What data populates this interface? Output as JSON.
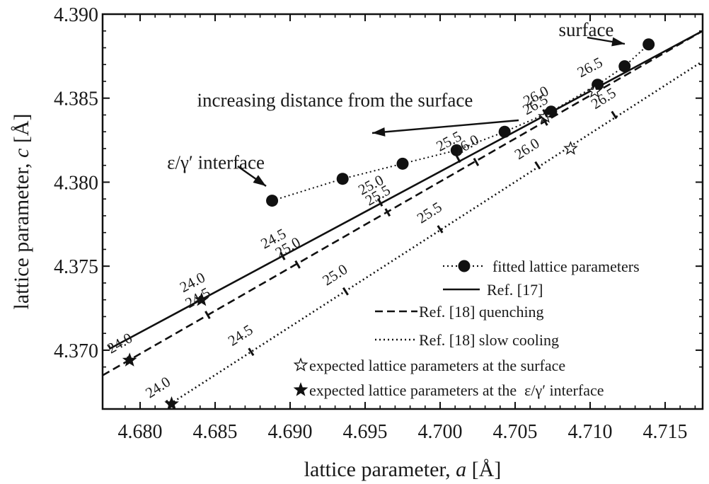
{
  "chart_data": {
    "type": "line",
    "xlabel": {
      "prefix": "lattice parameter, ",
      "symbol": "a",
      "unit": " [Å]"
    },
    "ylabel": {
      "prefix": "lattice parameter, ",
      "symbol": "c",
      "unit": " [Å]"
    },
    "xlim": [
      4.6775,
      4.7175
    ],
    "ylim": [
      4.3665,
      4.39
    ],
    "x_ticks": [
      "4.680",
      "4.685",
      "4.690",
      "4.695",
      "4.700",
      "4.705",
      "4.710",
      "4.715"
    ],
    "x_tick_values": [
      4.68,
      4.685,
      4.69,
      4.695,
      4.7,
      4.705,
      4.71,
      4.715
    ],
    "y_ticks": [
      "4.370",
      "4.375",
      "4.380",
      "4.385",
      "4.390"
    ],
    "y_tick_values": [
      4.37,
      4.375,
      4.38,
      4.385,
      4.39
    ],
    "grid": false,
    "series": [
      {
        "name": "fitted lattice parameters",
        "style": "dotted-markers",
        "x": [
          4.6888,
          4.6935,
          4.6975,
          4.7011,
          4.7043,
          4.7074,
          4.7105,
          4.7123,
          4.7139
        ],
        "y": [
          4.3789,
          4.3802,
          4.3811,
          4.3819,
          4.383,
          4.3842,
          4.3858,
          4.3869,
          4.3882
        ]
      },
      {
        "name": "Ref. [17]",
        "style": "solid",
        "x": [
          4.6779,
          4.678,
          4.7175
        ],
        "y": [
          4.3703,
          4.3701,
          4.389
        ],
        "composition_ticks": [
          {
            "label": "24.0",
            "x": 4.6841,
            "y": 4.373
          },
          {
            "label": "24.5",
            "x": 4.6895,
            "y": 4.3756
          },
          {
            "label": "25.0",
            "x": 4.696,
            "y": 4.3788
          },
          {
            "label": "25.5",
            "x": 4.7012,
            "y": 4.3814
          },
          {
            "label": "26.0",
            "x": 4.707,
            "y": 4.3841
          },
          {
            "label": "26.5",
            "x": 4.7106,
            "y": 4.3858
          }
        ]
      },
      {
        "name": "Ref. [18] quenching",
        "style": "dashed",
        "x": [
          4.6775,
          4.7175
        ],
        "y": [
          4.3685,
          4.389
        ],
        "composition_ticks": [
          {
            "label": "24.0",
            "x": 4.6793,
            "y": 4.3694
          },
          {
            "label": "24.5",
            "x": 4.6845,
            "y": 4.3721
          },
          {
            "label": "25.0",
            "x": 4.6905,
            "y": 4.3751
          },
          {
            "label": "25.5",
            "x": 4.6965,
            "y": 4.3782
          },
          {
            "label": "26.0",
            "x": 4.7024,
            "y": 4.3812
          },
          {
            "label": "26.5",
            "x": 4.707,
            "y": 4.3836
          }
        ]
      },
      {
        "name": "Ref. [18] slow cooling",
        "style": "dotted",
        "x": [
          4.682,
          4.7175
        ],
        "y": [
          4.3668,
          4.3872
        ],
        "composition_ticks": [
          {
            "label": "24.0",
            "x": 4.6819,
            "y": 4.3668
          },
          {
            "label": "24.5",
            "x": 4.6874,
            "y": 4.3699
          },
          {
            "label": "25.0",
            "x": 4.6937,
            "y": 4.3735
          },
          {
            "label": "25.5",
            "x": 4.7,
            "y": 4.3772
          },
          {
            "label": "26.0",
            "x": 4.7065,
            "y": 4.381
          },
          {
            "label": "26.5",
            "x": 4.7116,
            "y": 4.384
          }
        ]
      },
      {
        "name": "expected lattice parameters at the surface",
        "style": "open-star",
        "x": [
          4.707,
          4.7103,
          4.7087
        ],
        "y": [
          4.3839,
          4.3854,
          4.382
        ]
      },
      {
        "name": "expected lattice parameters at the ε/γ′ interface",
        "style": "filled-star",
        "x": [
          4.6841,
          4.6793,
          4.6821
        ],
        "y": [
          4.373,
          4.3694,
          4.3668
        ]
      }
    ],
    "annotations": [
      {
        "text": "surface",
        "x": 4.7079,
        "y": 4.3887,
        "arrow_to": [
          4.7134,
          4.3884
        ]
      },
      {
        "text": "ε/γ′ interface",
        "x": 4.6818,
        "y": 4.3808,
        "arrow_to": [
          4.6885,
          4.379
        ]
      },
      {
        "text": "increasing distance from the surface",
        "x": 4.6838,
        "y": 4.3845,
        "arrow_from": [
          4.7064,
          4.3849
        ],
        "arrow_to": [
          4.7009,
          4.3828
        ]
      }
    ],
    "legend": {
      "placement": "bottom-right",
      "entries": [
        "fitted lattice parameters",
        "Ref. [17]",
        "Ref. [18] quenching",
        "Ref. [18] slow cooling",
        "expected lattice parameters at the surface",
        "expected lattice parameters at the  ε/γ′ interface"
      ]
    }
  }
}
